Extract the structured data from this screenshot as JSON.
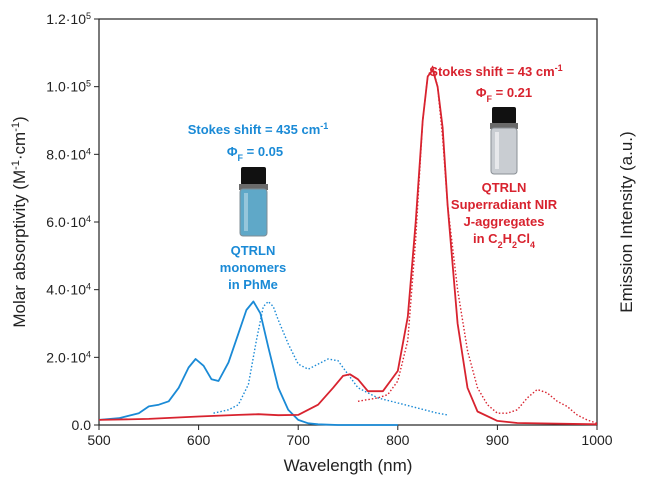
{
  "chart_data": {
    "type": "line",
    "x_axis": {
      "label": "Wavelength (nm)",
      "range": [
        500,
        1000
      ],
      "ticks": [
        500,
        600,
        700,
        800,
        900,
        1000
      ]
    },
    "y_axis_left": {
      "label_main": "Molar absorptivity (M",
      "label_sup1": "-1",
      "label_mid": "·cm",
      "label_sup2": "-1",
      "label_end": ")",
      "range": [
        0,
        120000
      ],
      "ticks": [
        {
          "value": 0,
          "base": "0.0",
          "exp": ""
        },
        {
          "value": 20000,
          "base": "2.0·10",
          "exp": "4"
        },
        {
          "value": 40000,
          "base": "4.0·10",
          "exp": "4"
        },
        {
          "value": 60000,
          "base": "6.0·10",
          "exp": "4"
        },
        {
          "value": 80000,
          "base": "8.0·10",
          "exp": "4"
        },
        {
          "value": 100000,
          "base": "1.0·10",
          "exp": "5"
        },
        {
          "value": 120000,
          "base": "1.2·10",
          "exp": "5"
        }
      ]
    },
    "y_axis_right": {
      "label": "Emission Intensity (a.u.)"
    },
    "series": [
      {
        "color": "#1a8ad6",
        "style": "solid",
        "x": [
          500,
          520,
          540,
          550,
          560,
          570,
          580,
          590,
          597,
          605,
          613,
          620,
          630,
          640,
          648,
          655,
          662,
          670,
          680,
          690,
          700,
          710,
          720,
          740,
          760,
          780,
          800
        ],
        "y": [
          1500,
          2000,
          3500,
          5500,
          6000,
          7000,
          11000,
          17000,
          19500,
          17500,
          13500,
          13000,
          18500,
          27000,
          34000,
          36500,
          33000,
          23000,
          11000,
          4500,
          1500,
          500,
          200,
          0,
          0,
          0,
          0
        ]
      },
      {
        "color": "#1a8ad6",
        "style": "dotted",
        "x": [
          615,
          630,
          640,
          650,
          658,
          665,
          670,
          675,
          680,
          690,
          700,
          710,
          720,
          730,
          740,
          750,
          760,
          780,
          800,
          820,
          840,
          850
        ],
        "y": [
          3500,
          4500,
          6000,
          12000,
          25000,
          35000,
          36500,
          35000,
          31000,
          24000,
          18000,
          16500,
          18000,
          19500,
          19000,
          15000,
          11000,
          8000,
          6500,
          5000,
          3500,
          3000
        ]
      },
      {
        "color": "#d8232f",
        "style": "solid",
        "x": [
          500,
          550,
          600,
          640,
          660,
          680,
          700,
          720,
          735,
          745,
          752,
          760,
          770,
          785,
          800,
          810,
          818,
          825,
          830,
          835,
          840,
          845,
          850,
          860,
          870,
          880,
          900,
          920,
          1000
        ],
        "y": [
          1500,
          1800,
          2500,
          3000,
          3200,
          2900,
          3000,
          6000,
          11000,
          14500,
          15000,
          13500,
          10000,
          10000,
          16000,
          32000,
          60000,
          90000,
          103000,
          105000,
          100000,
          88000,
          65000,
          30000,
          11000,
          4000,
          1200,
          600,
          200
        ]
      },
      {
        "color": "#d8232f",
        "style": "dotted",
        "x": [
          760,
          770,
          780,
          790,
          800,
          810,
          818,
          825,
          830,
          835,
          840,
          845,
          850,
          860,
          870,
          880,
          890,
          900,
          910,
          920,
          930,
          940,
          950,
          960,
          970,
          980,
          990,
          1000
        ],
        "y": [
          7000,
          7500,
          8000,
          9000,
          13000,
          25000,
          55000,
          90000,
          103000,
          106000,
          100000,
          85000,
          65000,
          40000,
          22000,
          11000,
          6000,
          3500,
          3500,
          4500,
          8000,
          10500,
          9500,
          7000,
          5500,
          3000,
          1500,
          500
        ]
      }
    ],
    "annotations": {
      "blue": {
        "line1": "Stokes shift = 435 cm",
        "line1_sup": "-1",
        "line2_a": "Φ",
        "line2_sub": "F",
        "line2_b": " = 0.05",
        "label1": "QTRLN",
        "label2": "monomers",
        "label3": "in PhMe"
      },
      "red": {
        "line1": "Stokes shift = 43 cm",
        "line1_sup": "-1",
        "line2_a": "Φ",
        "line2_sub": "F",
        "line2_b": " = 0.21",
        "label1": "QTRLN",
        "label2": "Superradiant NIR",
        "label3": "J-aggregates",
        "label4_a": "in C",
        "label4_s1": "2",
        "label4_b": "H",
        "label4_s2": "2",
        "label4_c": "Cl",
        "label4_s3": "4"
      }
    },
    "colors": {
      "blue": "#1a8ad6",
      "red": "#d8232f",
      "vial_blue": "#5fa8c8",
      "vial_clear": "#c9cdd2"
    }
  }
}
